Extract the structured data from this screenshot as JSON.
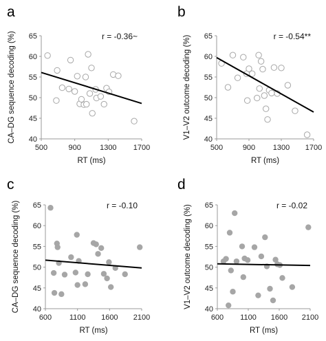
{
  "chart_data": [
    {
      "panel": "a",
      "type": "scatter",
      "xlabel": "RT (ms)",
      "ylabel": "CA–DG sequence decoding (%)",
      "annotation": "r = -0.36~",
      "xlim": [
        500,
        1700
      ],
      "ylim": [
        40,
        65
      ],
      "xticks": [
        "500",
        "900",
        "1300",
        "1700"
      ],
      "yticks": [
        "40",
        "45",
        "50",
        "55",
        "60",
        "65"
      ],
      "marker": "open",
      "marker_color": "#a6a6a6",
      "fit": {
        "x": [
          500,
          1700
        ],
        "y": [
          56.1,
          48.6
        ]
      },
      "points": [
        {
          "x": 575,
          "y": 60.2
        },
        {
          "x": 690,
          "y": 56.6
        },
        {
          "x": 750,
          "y": 52.4
        },
        {
          "x": 680,
          "y": 49.3
        },
        {
          "x": 850,
          "y": 59.1
        },
        {
          "x": 830,
          "y": 52.1
        },
        {
          "x": 900,
          "y": 51.5
        },
        {
          "x": 930,
          "y": 55.2
        },
        {
          "x": 960,
          "y": 48.5
        },
        {
          "x": 980,
          "y": 49.6
        },
        {
          "x": 1010,
          "y": 48.3
        },
        {
          "x": 1040,
          "y": 48.4
        },
        {
          "x": 1030,
          "y": 55.0
        },
        {
          "x": 1060,
          "y": 60.5
        },
        {
          "x": 1080,
          "y": 51.0
        },
        {
          "x": 1100,
          "y": 57.2
        },
        {
          "x": 1110,
          "y": 46.2
        },
        {
          "x": 1150,
          "y": 52.0
        },
        {
          "x": 1160,
          "y": 49.9
        },
        {
          "x": 1210,
          "y": 50.3
        },
        {
          "x": 1250,
          "y": 48.4
        },
        {
          "x": 1280,
          "y": 52.3
        },
        {
          "x": 1310,
          "y": 51.4
        },
        {
          "x": 1360,
          "y": 55.6
        },
        {
          "x": 1420,
          "y": 55.3
        },
        {
          "x": 1610,
          "y": 44.3
        }
      ]
    },
    {
      "panel": "b",
      "type": "scatter",
      "xlabel": "RT (ms)",
      "ylabel": "V1–V2 outcome decoding (%)",
      "annotation": "r = -0.54**",
      "xlim": [
        500,
        1700
      ],
      "ylim": [
        40,
        65
      ],
      "xticks": [
        "500",
        "900",
        "1300",
        "1700"
      ],
      "yticks": [
        "40",
        "45",
        "50",
        "55",
        "60",
        "65"
      ],
      "marker": "open",
      "marker_color": "#a6a6a6",
      "fit": {
        "x": [
          500,
          1700
        ],
        "y": [
          59.7,
          46.5
        ]
      },
      "points": [
        {
          "x": 560,
          "y": 58.3
        },
        {
          "x": 640,
          "y": 52.5
        },
        {
          "x": 700,
          "y": 60.3
        },
        {
          "x": 760,
          "y": 54.8
        },
        {
          "x": 830,
          "y": 59.8
        },
        {
          "x": 870,
          "y": 55.8
        },
        {
          "x": 880,
          "y": 49.3
        },
        {
          "x": 900,
          "y": 57.0
        },
        {
          "x": 940,
          "y": 55.8
        },
        {
          "x": 1000,
          "y": 49.9
        },
        {
          "x": 1020,
          "y": 60.3
        },
        {
          "x": 1030,
          "y": 52.2
        },
        {
          "x": 1050,
          "y": 58.8
        },
        {
          "x": 1070,
          "y": 56.9
        },
        {
          "x": 1090,
          "y": 50.5
        },
        {
          "x": 1110,
          "y": 47.3
        },
        {
          "x": 1130,
          "y": 44.7
        },
        {
          "x": 1150,
          "y": 51.8
        },
        {
          "x": 1180,
          "y": 51.1
        },
        {
          "x": 1210,
          "y": 57.3
        },
        {
          "x": 1250,
          "y": 51.0
        },
        {
          "x": 1300,
          "y": 57.2
        },
        {
          "x": 1380,
          "y": 53.0
        },
        {
          "x": 1470,
          "y": 46.8
        },
        {
          "x": 1620,
          "y": 41.0
        }
      ]
    },
    {
      "panel": "c",
      "type": "scatter",
      "xlabel": "RT (ms)",
      "ylabel": "CA–DG sequence decoding (%)",
      "annotation": "r = -0.10",
      "xlim": [
        600,
        2100
      ],
      "ylim": [
        40,
        65
      ],
      "xticks": [
        "600",
        "1100",
        "1600",
        "2100"
      ],
      "yticks": [
        "40",
        "45",
        "50",
        "55",
        "60",
        "65"
      ],
      "marker": "filled",
      "marker_color": "#a6a6a6",
      "fit": {
        "x": [
          600,
          2100
        ],
        "y": [
          51.7,
          49.8
        ]
      },
      "points": [
        {
          "x": 680,
          "y": 64.3
        },
        {
          "x": 730,
          "y": 48.6
        },
        {
          "x": 740,
          "y": 43.8
        },
        {
          "x": 780,
          "y": 55.7
        },
        {
          "x": 790,
          "y": 54.8
        },
        {
          "x": 810,
          "y": 51.0
        },
        {
          "x": 850,
          "y": 43.5
        },
        {
          "x": 900,
          "y": 48.2
        },
        {
          "x": 1000,
          "y": 52.4
        },
        {
          "x": 1070,
          "y": 48.7
        },
        {
          "x": 1090,
          "y": 57.8
        },
        {
          "x": 1100,
          "y": 45.7
        },
        {
          "x": 1120,
          "y": 51.5
        },
        {
          "x": 1220,
          "y": 45.9
        },
        {
          "x": 1260,
          "y": 48.3
        },
        {
          "x": 1350,
          "y": 55.8
        },
        {
          "x": 1390,
          "y": 55.5
        },
        {
          "x": 1420,
          "y": 53.2
        },
        {
          "x": 1470,
          "y": 54.6
        },
        {
          "x": 1510,
          "y": 48.4
        },
        {
          "x": 1560,
          "y": 47.3
        },
        {
          "x": 1590,
          "y": 51.2
        },
        {
          "x": 1620,
          "y": 45.2
        },
        {
          "x": 1690,
          "y": 49.8
        },
        {
          "x": 1840,
          "y": 48.3
        },
        {
          "x": 2070,
          "y": 54.8
        }
      ]
    },
    {
      "panel": "d",
      "type": "scatter",
      "xlabel": "RT (ms)",
      "ylabel": "V1–V2 outcome decoding (%)",
      "annotation": "r = -0.02",
      "xlim": [
        600,
        2100
      ],
      "ylim": [
        40,
        65
      ],
      "xticks": [
        "600",
        "1100",
        "1600",
        "2100"
      ],
      "yticks": [
        "40",
        "45",
        "50",
        "55",
        "60",
        "65"
      ],
      "marker": "filled",
      "marker_color": "#a6a6a6",
      "fit": {
        "x": [
          600,
          2100
        ],
        "y": [
          50.8,
          50.4
        ]
      },
      "points": [
        {
          "x": 700,
          "y": 51.4
        },
        {
          "x": 740,
          "y": 52.0
        },
        {
          "x": 780,
          "y": 40.8
        },
        {
          "x": 800,
          "y": 58.3
        },
        {
          "x": 820,
          "y": 49.2
        },
        {
          "x": 850,
          "y": 44.1
        },
        {
          "x": 880,
          "y": 63.0
        },
        {
          "x": 910,
          "y": 51.4
        },
        {
          "x": 1000,
          "y": 55.0
        },
        {
          "x": 1020,
          "y": 47.6
        },
        {
          "x": 1040,
          "y": 52.1
        },
        {
          "x": 1090,
          "y": 51.7
        },
        {
          "x": 1200,
          "y": 54.8
        },
        {
          "x": 1260,
          "y": 43.2
        },
        {
          "x": 1310,
          "y": 52.6
        },
        {
          "x": 1370,
          "y": 57.2
        },
        {
          "x": 1400,
          "y": 50.2
        },
        {
          "x": 1450,
          "y": 44.8
        },
        {
          "x": 1500,
          "y": 42.0
        },
        {
          "x": 1540,
          "y": 51.8
        },
        {
          "x": 1570,
          "y": 50.7
        },
        {
          "x": 1610,
          "y": 50.5
        },
        {
          "x": 1650,
          "y": 47.4
        },
        {
          "x": 1810,
          "y": 45.2
        },
        {
          "x": 2070,
          "y": 59.6
        }
      ]
    }
  ]
}
